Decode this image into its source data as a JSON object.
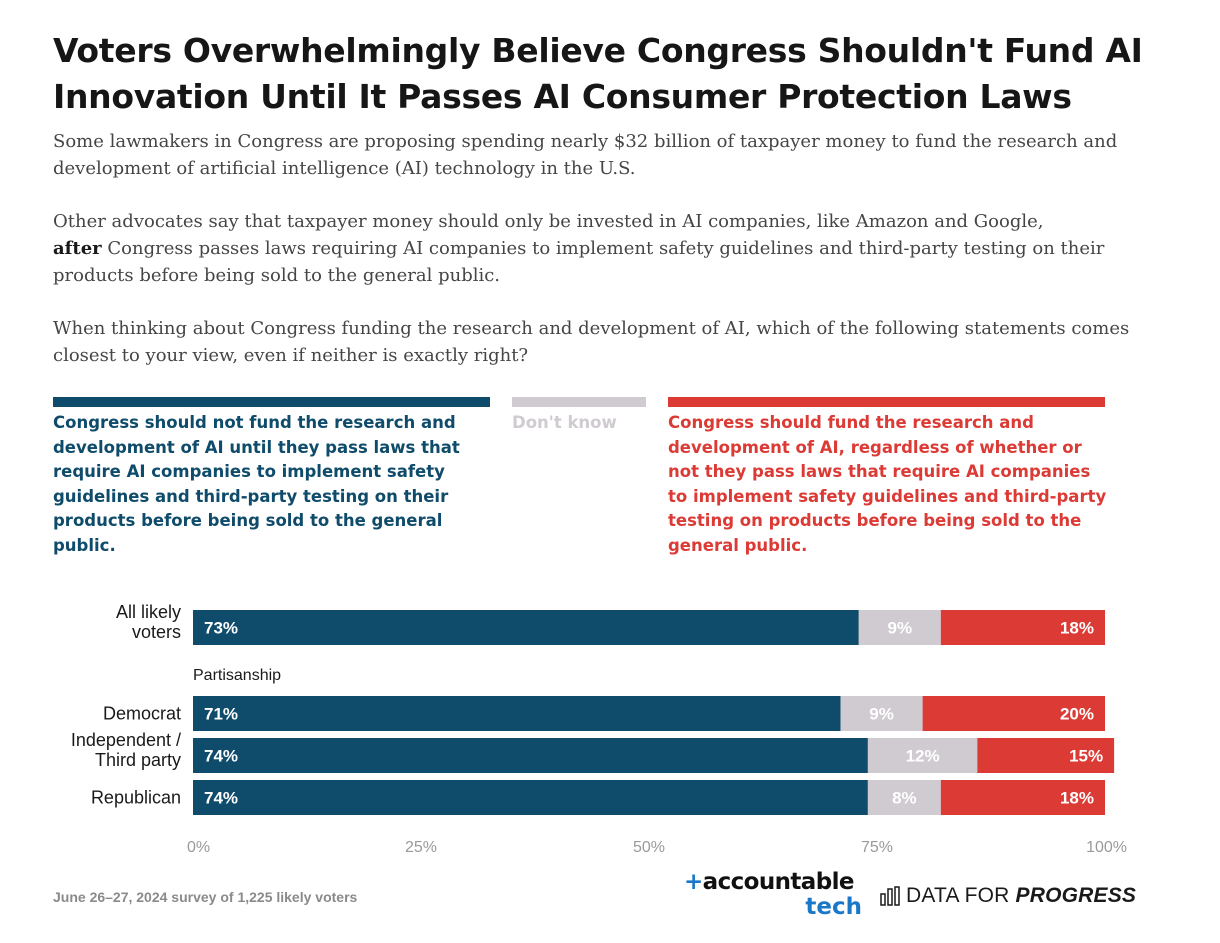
{
  "title": "Voters Overwhelmingly Believe Congress Shouldn't Fund AI Innovation Until It Passes AI Consumer Protection Laws",
  "intro": {
    "p1": "Some lawmakers in Congress are proposing spending nearly $32 billion of taxpayer money to fund the research and development of artificial intelligence (AI) technology in the U.S.",
    "p2_before": "Other advocates say that taxpayer money should only be invested in AI companies, like Amazon and Google,",
    "p2_bold": "after",
    "p2_after": "Congress passes laws requiring AI companies to implement safety guidelines and third-party testing on their products before being sold to the general public.",
    "p3": "When thinking about Congress funding the research and development of AI, which of the following statements comes closest to your view, even if neither is exactly right?"
  },
  "legend": [
    {
      "label": "Congress should not fund the research and development of AI until they pass laws that require AI companies to implement safety guidelines and third-party testing on their products before being sold to the general public.",
      "color": "#0f4b6a"
    },
    {
      "label": "Don't know",
      "color": "#cfcbd0"
    },
    {
      "label": "Congress should fund the research and development of AI, regardless of whether or not they pass laws that require AI companies to implement safety guidelines and third-party testing on products before being sold to the general public.",
      "color": "#dc3a35"
    }
  ],
  "chart_data": {
    "type": "bar",
    "orientation": "horizontal",
    "stacked": true,
    "categories": [
      "All likely voters",
      "Democrat",
      "Independent / Third party",
      "Republican"
    ],
    "group_label": "Partisanship",
    "series": [
      {
        "name": "Congress should not fund the research and development of AI until they pass laws that require AI companies to implement safety guidelines and third-party testing on their products before being sold to the general public.",
        "color": "#0f4b6a",
        "values": [
          73,
          71,
          74,
          74
        ]
      },
      {
        "name": "Don't know",
        "color": "#cfcbd0",
        "values": [
          9,
          9,
          12,
          8
        ]
      },
      {
        "name": "Congress should fund the research and development of AI, regardless of whether or not they pass laws that require AI companies to implement safety guidelines and third-party testing on products before being sold to the general public.",
        "color": "#dc3a35",
        "values": [
          18,
          20,
          15,
          18
        ]
      }
    ],
    "xticks": [
      "0%",
      "25%",
      "50%",
      "75%",
      "100%"
    ],
    "xlim": [
      0,
      100
    ]
  },
  "footnote": "June 26–27, 2024 survey of 1,225 likely voters",
  "branding": {
    "accountable_plus": "+",
    "accountable_word": "accountable",
    "accountable_tech": "tech",
    "dfp_regular": "DATA FOR",
    "dfp_bold": "PROGRESS"
  }
}
